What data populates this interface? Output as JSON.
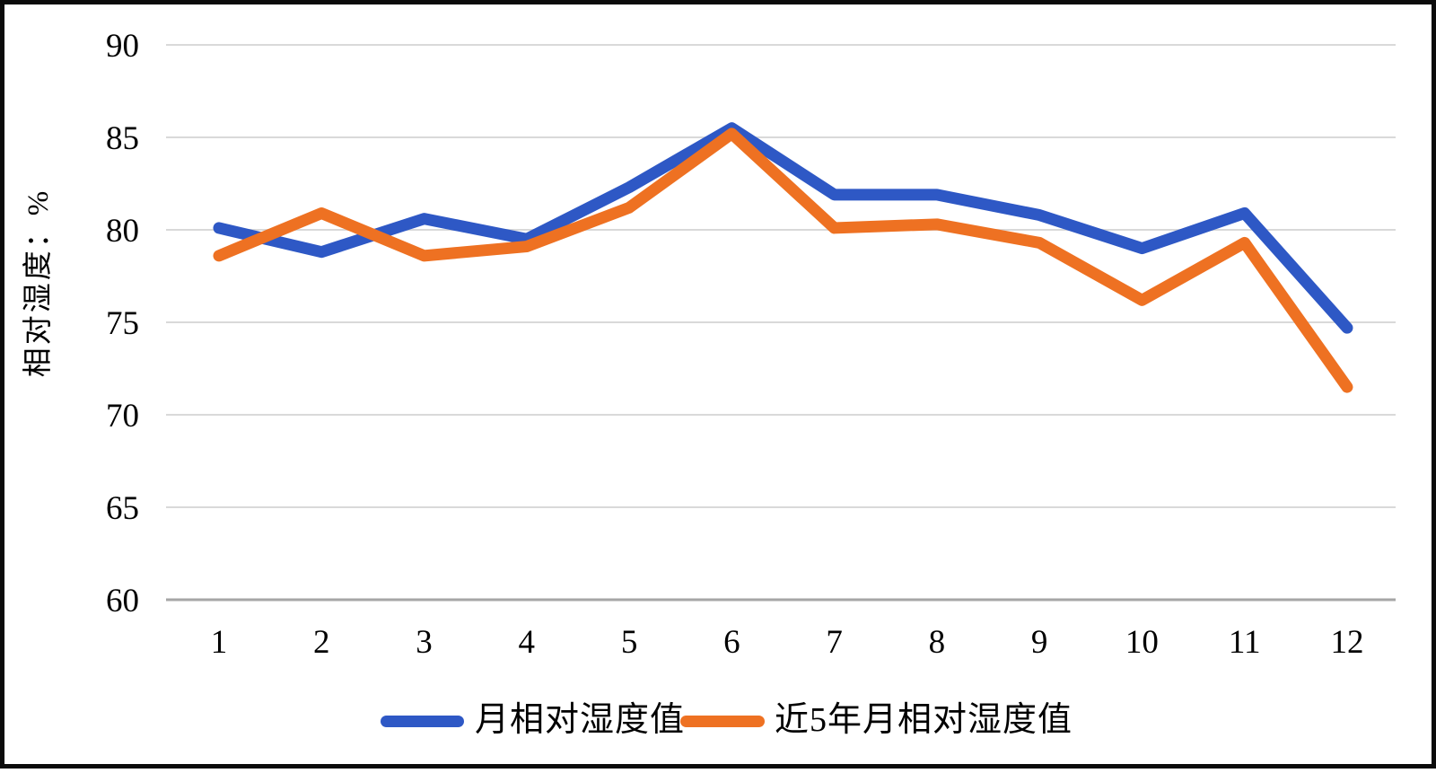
{
  "chart_data": {
    "type": "line",
    "title": "",
    "xlabel": "",
    "ylabel": "相对湿度：%",
    "categories": [
      "1",
      "2",
      "3",
      "4",
      "5",
      "6",
      "7",
      "8",
      "9",
      "10",
      "11",
      "12"
    ],
    "yticks": [
      90,
      85,
      80,
      75,
      70,
      65,
      60
    ],
    "ylim": [
      60,
      90
    ],
    "grid": true,
    "legend_position": "bottom",
    "series": [
      {
        "name": "月相对湿度值",
        "color": "#2e58c5",
        "values": [
          80.1,
          78.8,
          80.6,
          79.5,
          82.3,
          85.5,
          81.9,
          81.9,
          80.8,
          79.0,
          80.9,
          74.7
        ]
      },
      {
        "name": "近5年月相对湿度值",
        "color": "#ee7122",
        "values": [
          78.6,
          80.9,
          78.6,
          79.1,
          81.2,
          85.2,
          80.1,
          80.3,
          79.3,
          76.2,
          79.3,
          71.5
        ]
      }
    ]
  },
  "colors": {
    "gridline": "#d9d9d9",
    "axis_line": "#a6a6a6",
    "tick_text": "#000000"
  }
}
